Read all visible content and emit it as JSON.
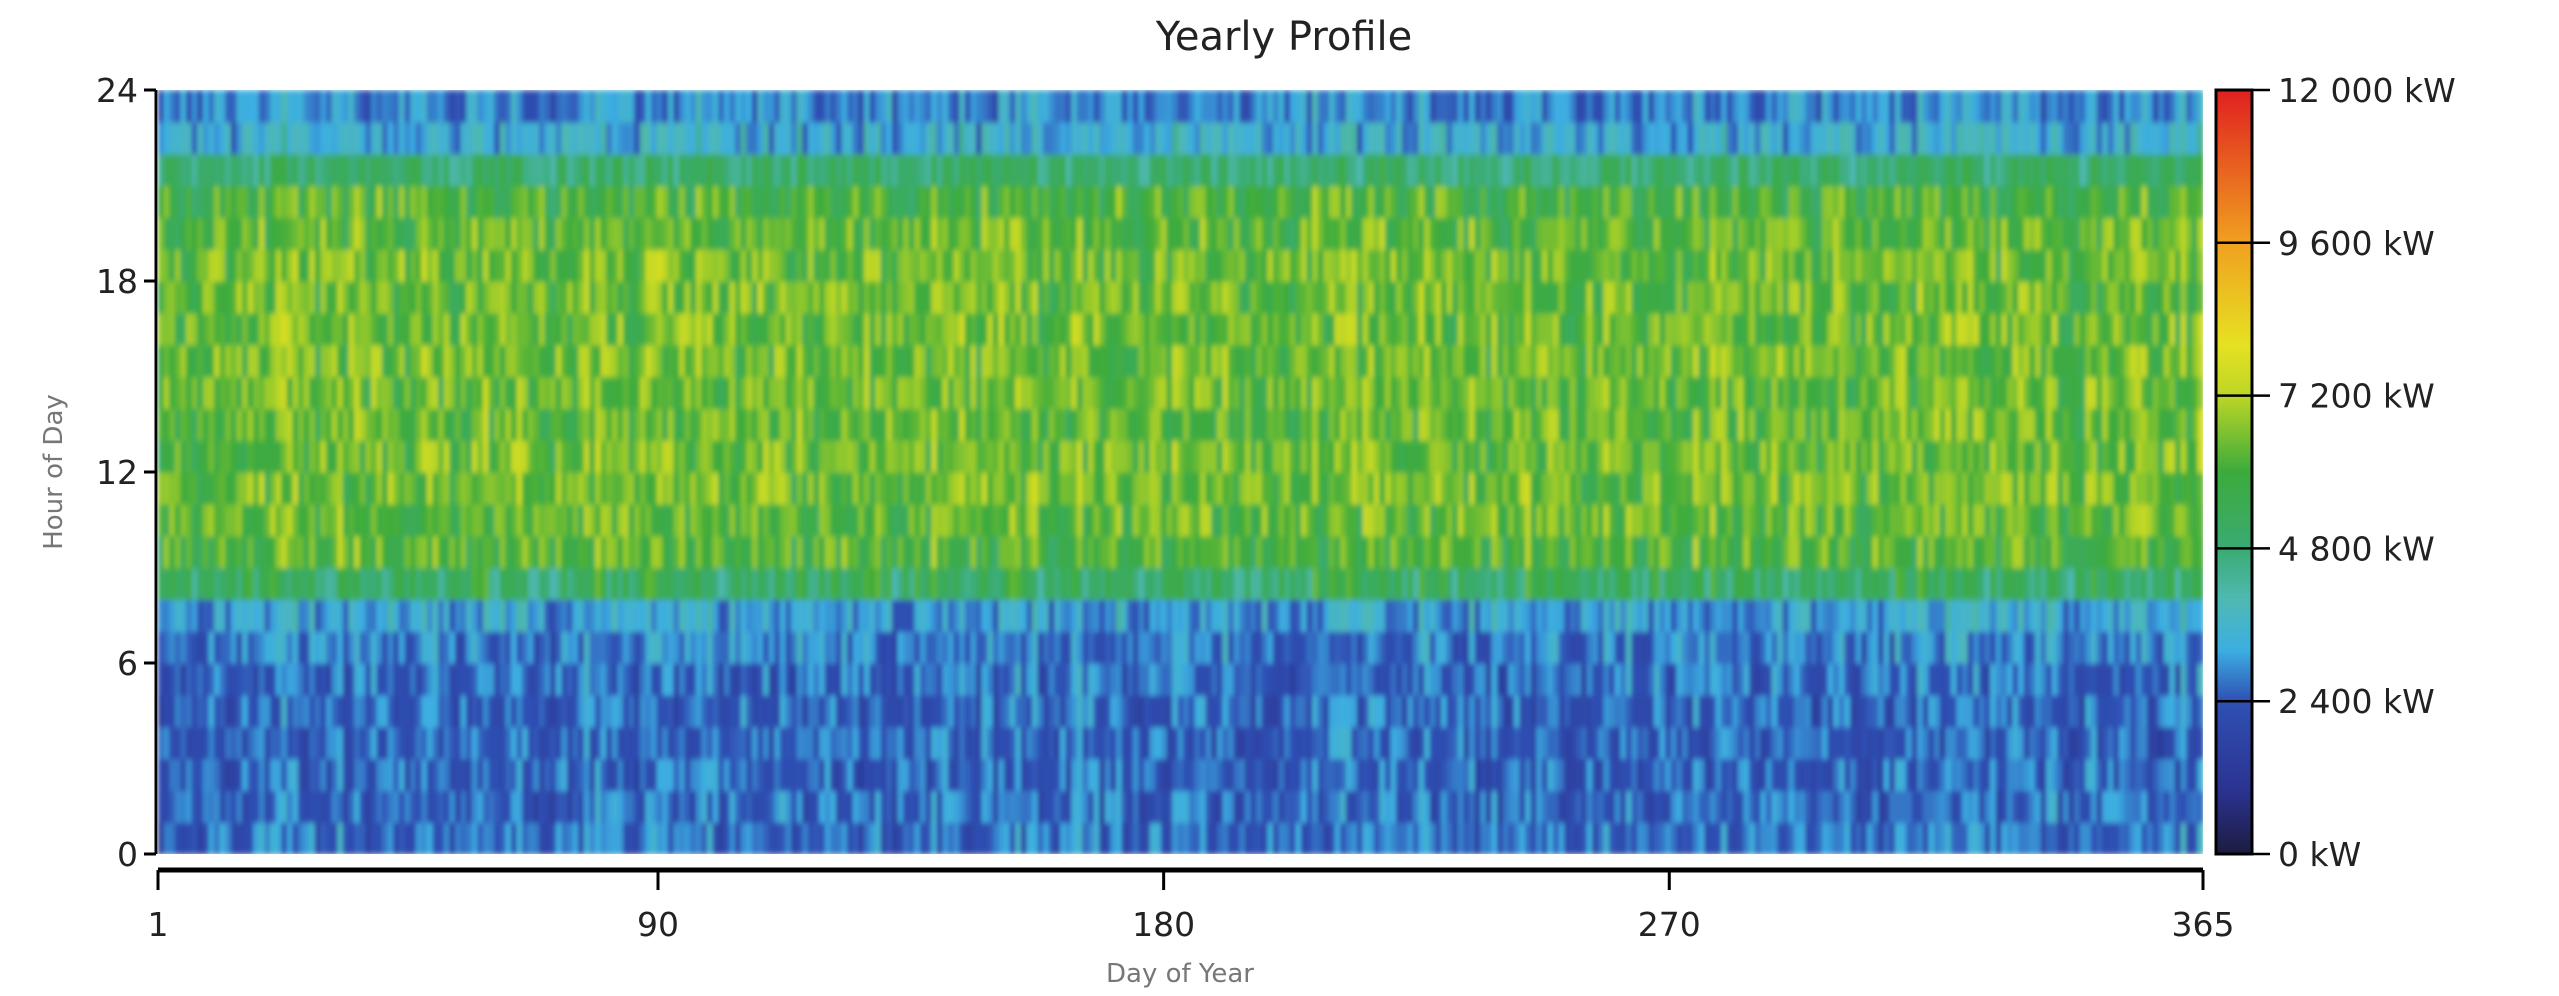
{
  "chart_data": {
    "type": "heatmap",
    "title": "Yearly Profile",
    "xlabel": "Day of Year",
    "ylabel": "Hour of Day",
    "xlim": [
      1,
      365
    ],
    "ylim": [
      0,
      24
    ],
    "x_ticks": [
      "1",
      "90",
      "180",
      "270",
      "365"
    ],
    "x_tick_values": [
      1,
      90,
      180,
      270,
      365
    ],
    "y_ticks": [
      "0",
      "6",
      "12",
      "18",
      "24"
    ],
    "y_tick_values": [
      0,
      6,
      12,
      18,
      24
    ],
    "colorbar": {
      "range": [
        0,
        12000
      ],
      "unit": "kW",
      "tick_values": [
        0,
        2400,
        4800,
        7200,
        9600,
        12000
      ],
      "tick_labels": [
        "0 kW",
        "2 400 kW",
        "4 800 kW",
        "7 200 kW",
        "9 600 kW",
        "12 000 kW"
      ],
      "colors": [
        {
          "v": 0,
          "c": "#1c1c40"
        },
        {
          "v": 1000,
          "c": "#2b3390"
        },
        {
          "v": 2400,
          "c": "#2f50b4"
        },
        {
          "v": 3200,
          "c": "#3caee2"
        },
        {
          "v": 4000,
          "c": "#4fb9b2"
        },
        {
          "v": 4800,
          "c": "#3aab72"
        },
        {
          "v": 6000,
          "c": "#3cab3c"
        },
        {
          "v": 7200,
          "c": "#bcd626"
        },
        {
          "v": 8000,
          "c": "#e6e122"
        },
        {
          "v": 9600,
          "c": "#f0a020"
        },
        {
          "v": 12000,
          "c": "#e02020"
        }
      ]
    },
    "hourly_mean_kw": [
      2600,
      2550,
      2500,
      2500,
      2550,
      2600,
      2800,
      3200,
      5200,
      6100,
      6300,
      6400,
      6400,
      6300,
      6300,
      6400,
      6400,
      6400,
      6400,
      6200,
      6000,
      5000,
      3400,
      2900
    ],
    "days": 365,
    "hours": 24
  }
}
